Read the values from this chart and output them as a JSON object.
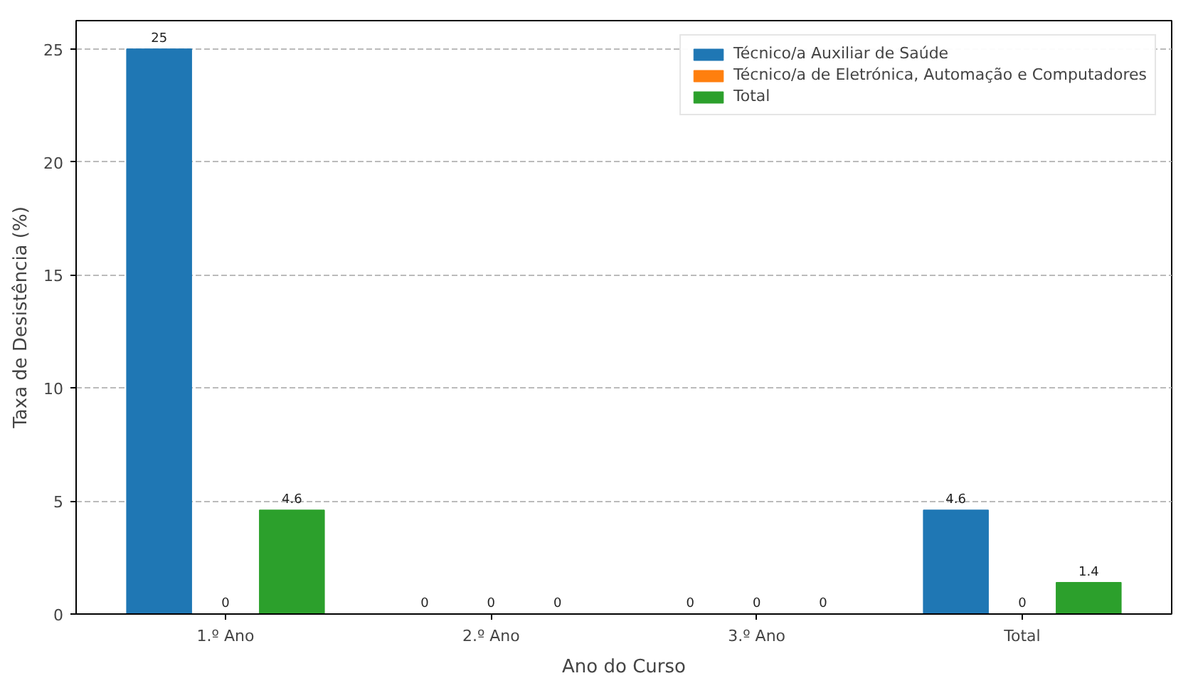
{
  "chart_data": {
    "type": "bar",
    "xlabel": "Ano do Curso",
    "ylabel": "Taxa de Desistência (%)",
    "categories": [
      "1.º Ano",
      "2.º Ano",
      "3.º Ano",
      "Total"
    ],
    "series": [
      {
        "name": "Técnico/a Auxiliar de Saúde",
        "color": "#1f77b4",
        "values": [
          25,
          0,
          0,
          4.6
        ]
      },
      {
        "name": "Técnico/a de Eletrónica, Automação e Computadores",
        "color": "#ff7f0e",
        "values": [
          0,
          0,
          0,
          0
        ]
      },
      {
        "name": "Total",
        "color": "#2ca02c",
        "values": [
          4.6,
          0,
          0,
          1.4
        ]
      }
    ],
    "ylim": [
      0,
      26.25
    ],
    "yticks": [
      0,
      5,
      10,
      15,
      20,
      25
    ],
    "grid": "y",
    "legend": "top right",
    "data_labels": true
  }
}
